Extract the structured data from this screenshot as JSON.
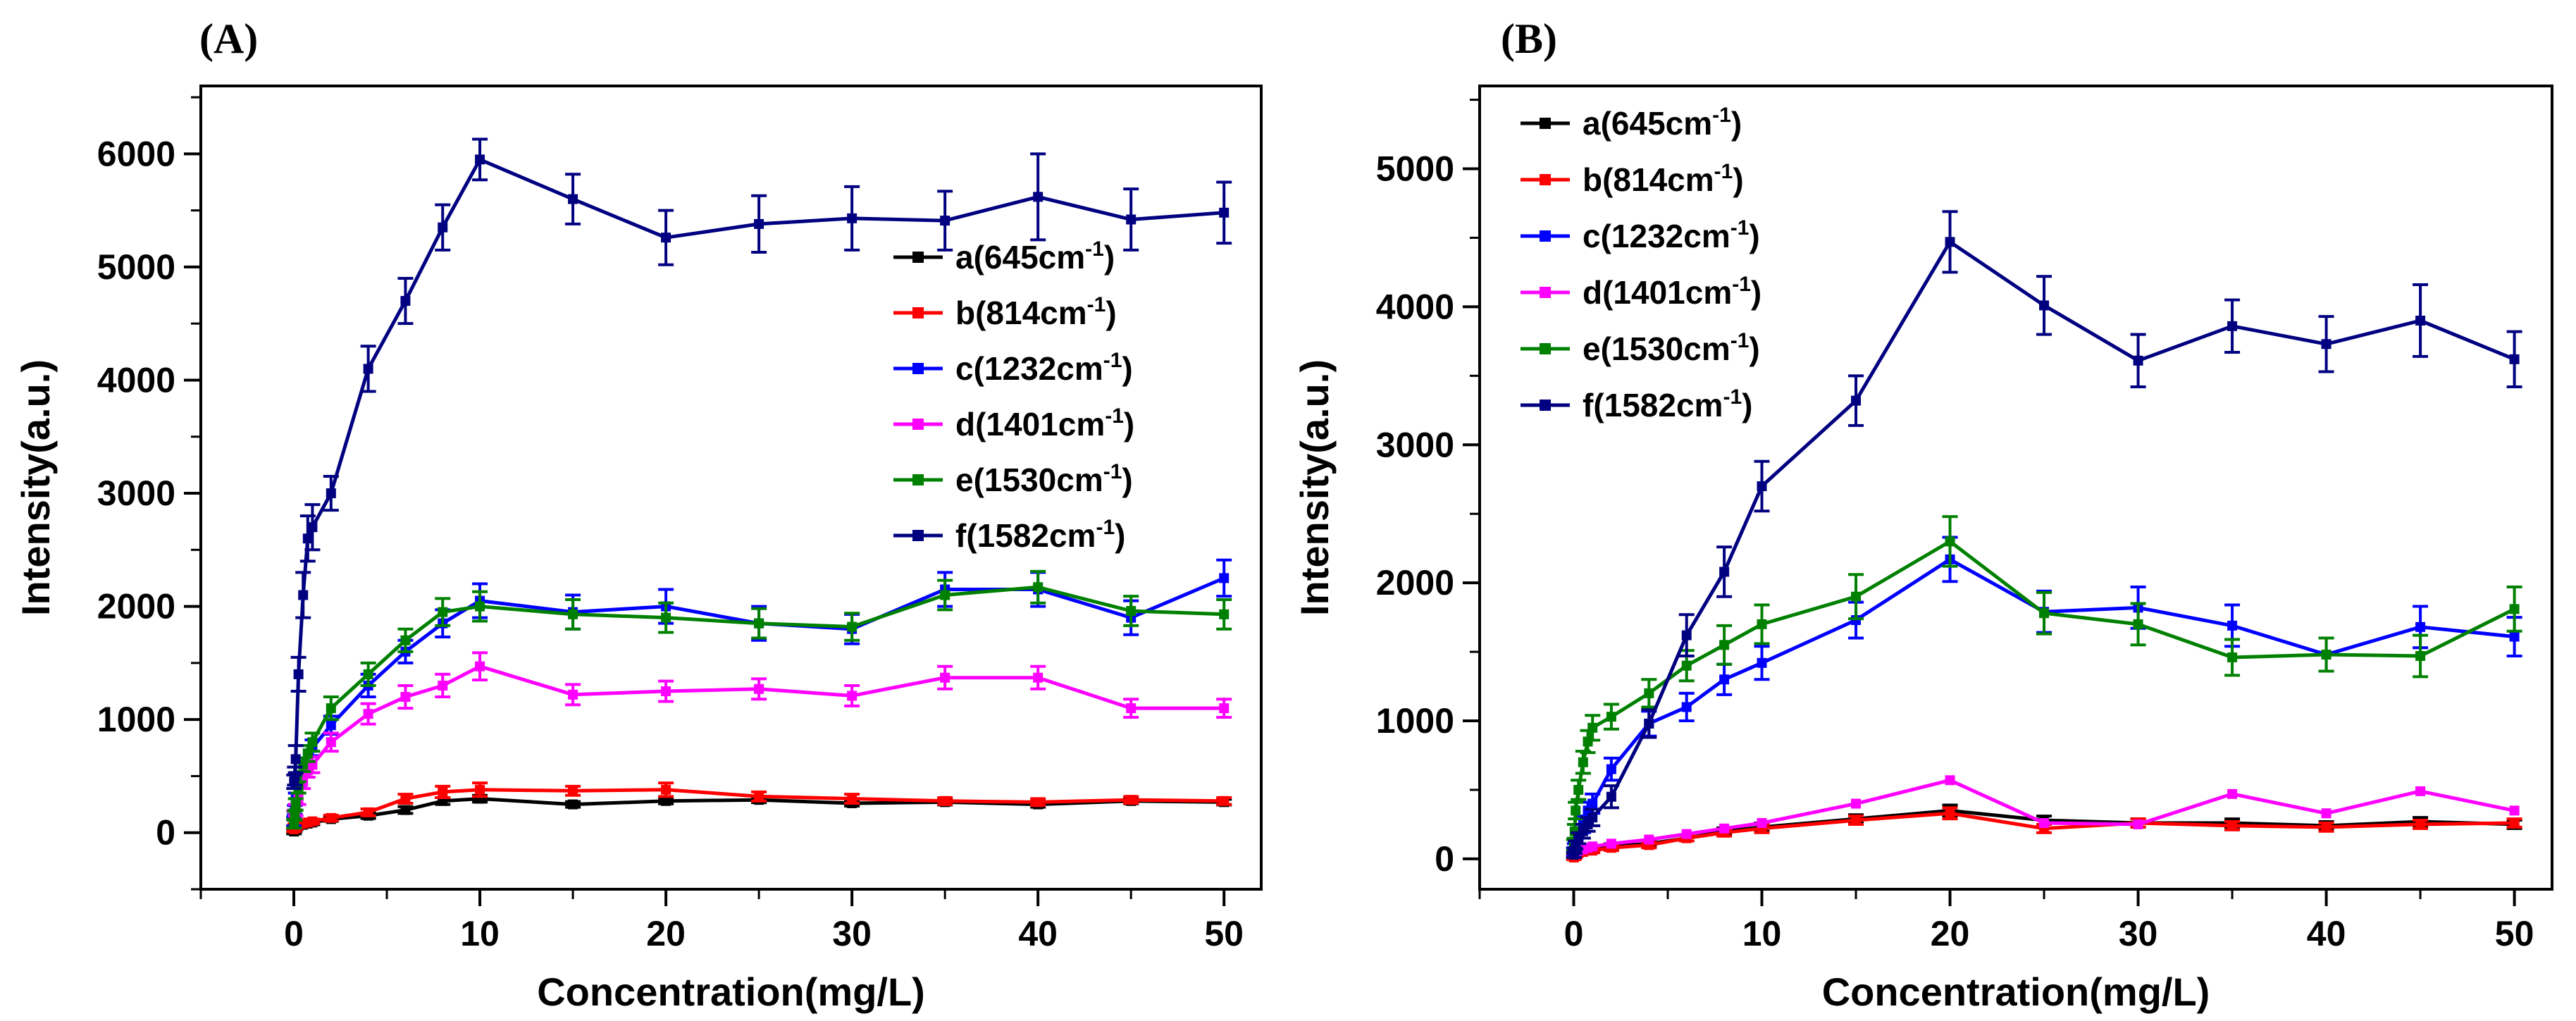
{
  "chart_data": [
    {
      "panel": "(A)",
      "type": "line",
      "xlabel": "Concentration(mg/L)",
      "ylabel": "Intensity(a.u.)",
      "xlim": [
        -5,
        52
      ],
      "ylim": [
        -500,
        6600
      ],
      "xticks": [
        0,
        10,
        20,
        30,
        40,
        50
      ],
      "yticks": [
        0,
        1000,
        2000,
        3000,
        4000,
        5000,
        6000
      ],
      "legend_position": "right",
      "x": [
        0.01,
        0.05,
        0.1,
        0.25,
        0.5,
        0.75,
        1,
        2,
        4,
        6,
        8,
        10,
        15,
        20,
        25,
        30,
        35,
        40,
        45,
        50
      ],
      "series": [
        {
          "name": "a(645cm",
          "sup": "-1",
          "tail": ")",
          "color": "#000000",
          "values": [
            10,
            30,
            50,
            60,
            70,
            80,
            90,
            120,
            150,
            200,
            280,
            300,
            250,
            280,
            290,
            260,
            270,
            250,
            280,
            270
          ],
          "errors": [
            20,
            20,
            20,
            20,
            20,
            20,
            20,
            20,
            25,
            30,
            30,
            30,
            25,
            25,
            25,
            25,
            25,
            25,
            25,
            25
          ]
        },
        {
          "name": "b(814cm",
          "sup": "-1",
          "tail": ")",
          "color": "#ff0000",
          "values": [
            30,
            50,
            60,
            70,
            80,
            90,
            100,
            130,
            180,
            300,
            360,
            380,
            370,
            380,
            320,
            300,
            280,
            270,
            290,
            280
          ],
          "errors": [
            20,
            20,
            20,
            20,
            20,
            20,
            20,
            25,
            30,
            40,
            50,
            60,
            40,
            60,
            40,
            40,
            30,
            30,
            30,
            30
          ]
        },
        {
          "name": "c(1232cm",
          "sup": "-1",
          "tail": ")",
          "color": "#0000ff",
          "values": [
            100,
            200,
            300,
            450,
            600,
            700,
            750,
            950,
            1300,
            1600,
            1850,
            2050,
            1950,
            2000,
            1850,
            1800,
            2150,
            2150,
            1900,
            2250
          ],
          "errors": [
            40,
            40,
            50,
            50,
            60,
            70,
            70,
            80,
            100,
            100,
            120,
            150,
            150,
            150,
            150,
            130,
            150,
            150,
            150,
            160
          ]
        },
        {
          "name": "d(1401cm",
          "sup": "-1",
          "tail": ")",
          "color": "#ff00ff",
          "values": [
            150,
            160,
            200,
            300,
            450,
            550,
            600,
            800,
            1050,
            1200,
            1300,
            1470,
            1220,
            1250,
            1270,
            1210,
            1370,
            1370,
            1100,
            1100
          ],
          "errors": [
            40,
            40,
            50,
            50,
            60,
            60,
            70,
            80,
            90,
            100,
            100,
            120,
            90,
            90,
            90,
            90,
            100,
            100,
            80,
            80
          ]
        },
        {
          "name": "e(1530cm",
          "sup": "-1",
          "tail": ")",
          "color": "#008000",
          "values": [
            80,
            150,
            250,
            400,
            600,
            700,
            800,
            1100,
            1400,
            1700,
            1950,
            2000,
            1930,
            1900,
            1850,
            1820,
            2100,
            2170,
            1960,
            1930
          ],
          "errors": [
            40,
            40,
            50,
            50,
            60,
            70,
            80,
            100,
            100,
            100,
            120,
            130,
            130,
            130,
            130,
            120,
            130,
            140,
            130,
            130
          ]
        },
        {
          "name": "f(1582cm",
          "sup": "-1",
          "tail": ")",
          "color": "#000080",
          "values": [
            450,
            500,
            650,
            1400,
            2100,
            2600,
            2700,
            3000,
            4100,
            4700,
            5350,
            5950,
            5600,
            5260,
            5380,
            5430,
            5410,
            5620,
            5420,
            5480
          ],
          "errors": [
            60,
            80,
            120,
            150,
            200,
            200,
            200,
            150,
            200,
            200,
            200,
            180,
            220,
            240,
            250,
            280,
            260,
            380,
            270,
            270
          ]
        }
      ]
    },
    {
      "panel": "(B)",
      "type": "line",
      "xlabel": "Concentration(mg/L)",
      "ylabel": "Intensity(a.u.)",
      "xlim": [
        -5,
        52
      ],
      "ylim": [
        -220,
        5600
      ],
      "xticks": [
        0,
        10,
        20,
        30,
        40,
        50
      ],
      "yticks": [
        0,
        1000,
        2000,
        3000,
        4000,
        5000
      ],
      "legend_position": "top-left",
      "x": [
        0.01,
        0.05,
        0.1,
        0.25,
        0.5,
        0.75,
        1,
        2,
        4,
        6,
        8,
        10,
        15,
        20,
        25,
        30,
        35,
        40,
        45,
        50
      ],
      "series": [
        {
          "name": "a(645cm",
          "sup": "-1",
          "tail": ")",
          "color": "#000000",
          "values": [
            20,
            30,
            40,
            50,
            60,
            70,
            80,
            90,
            110,
            150,
            200,
            230,
            290,
            350,
            280,
            260,
            260,
            240,
            270,
            250
          ],
          "errors": [
            15,
            15,
            15,
            15,
            15,
            15,
            15,
            20,
            20,
            20,
            25,
            30,
            30,
            40,
            30,
            30,
            30,
            30,
            30,
            30
          ]
        },
        {
          "name": "b(814cm",
          "sup": "-1",
          "tail": ")",
          "color": "#ff0000",
          "values": [
            10,
            20,
            30,
            40,
            50,
            60,
            60,
            80,
            100,
            150,
            190,
            220,
            280,
            330,
            220,
            260,
            240,
            230,
            250,
            260
          ],
          "errors": [
            15,
            15,
            15,
            15,
            15,
            15,
            15,
            20,
            20,
            20,
            25,
            30,
            30,
            40,
            30,
            30,
            30,
            30,
            30,
            30
          ]
        },
        {
          "name": "c(1232cm",
          "sup": "-1",
          "tail": ")",
          "color": "#0000ff",
          "values": [
            50,
            80,
            100,
            150,
            250,
            350,
            400,
            650,
            980,
            1100,
            1300,
            1420,
            1730,
            2170,
            1790,
            1820,
            1690,
            1480,
            1680,
            1610
          ],
          "errors": [
            30,
            30,
            40,
            50,
            60,
            60,
            70,
            80,
            90,
            100,
            110,
            120,
            130,
            160,
            150,
            150,
            150,
            120,
            150,
            140
          ]
        },
        {
          "name": "d(1401cm",
          "sup": "-1",
          "tail": ")",
          "color": "#ff00ff",
          "values": [
            30,
            40,
            50,
            60,
            70,
            80,
            90,
            110,
            140,
            180,
            220,
            260,
            400,
            570,
            260,
            250,
            470,
            330,
            490,
            350
          ]
        },
        {
          "name": "e(1530cm",
          "sup": "-1",
          "tail": ")",
          "color": "#008000",
          "values": [
            100,
            200,
            350,
            500,
            700,
            850,
            950,
            1030,
            1200,
            1400,
            1550,
            1700,
            1900,
            2300,
            1780,
            1700,
            1460,
            1480,
            1470,
            1810
          ],
          "errors": [
            40,
            50,
            60,
            70,
            80,
            80,
            90,
            90,
            100,
            110,
            140,
            140,
            160,
            180,
            150,
            150,
            130,
            120,
            150,
            160
          ]
        },
        {
          "name": "f(1582cm",
          "sup": "-1",
          "tail": ")",
          "color": "#000080",
          "values": [
            30,
            60,
            100,
            150,
            200,
            250,
            300,
            450,
            980,
            1620,
            2080,
            2700,
            3320,
            4470,
            4010,
            3610,
            3860,
            3730,
            3900,
            3620
          ],
          "errors": [
            20,
            20,
            30,
            40,
            50,
            50,
            60,
            80,
            100,
            150,
            180,
            180,
            180,
            220,
            210,
            190,
            190,
            200,
            260,
            200
          ]
        }
      ]
    }
  ]
}
